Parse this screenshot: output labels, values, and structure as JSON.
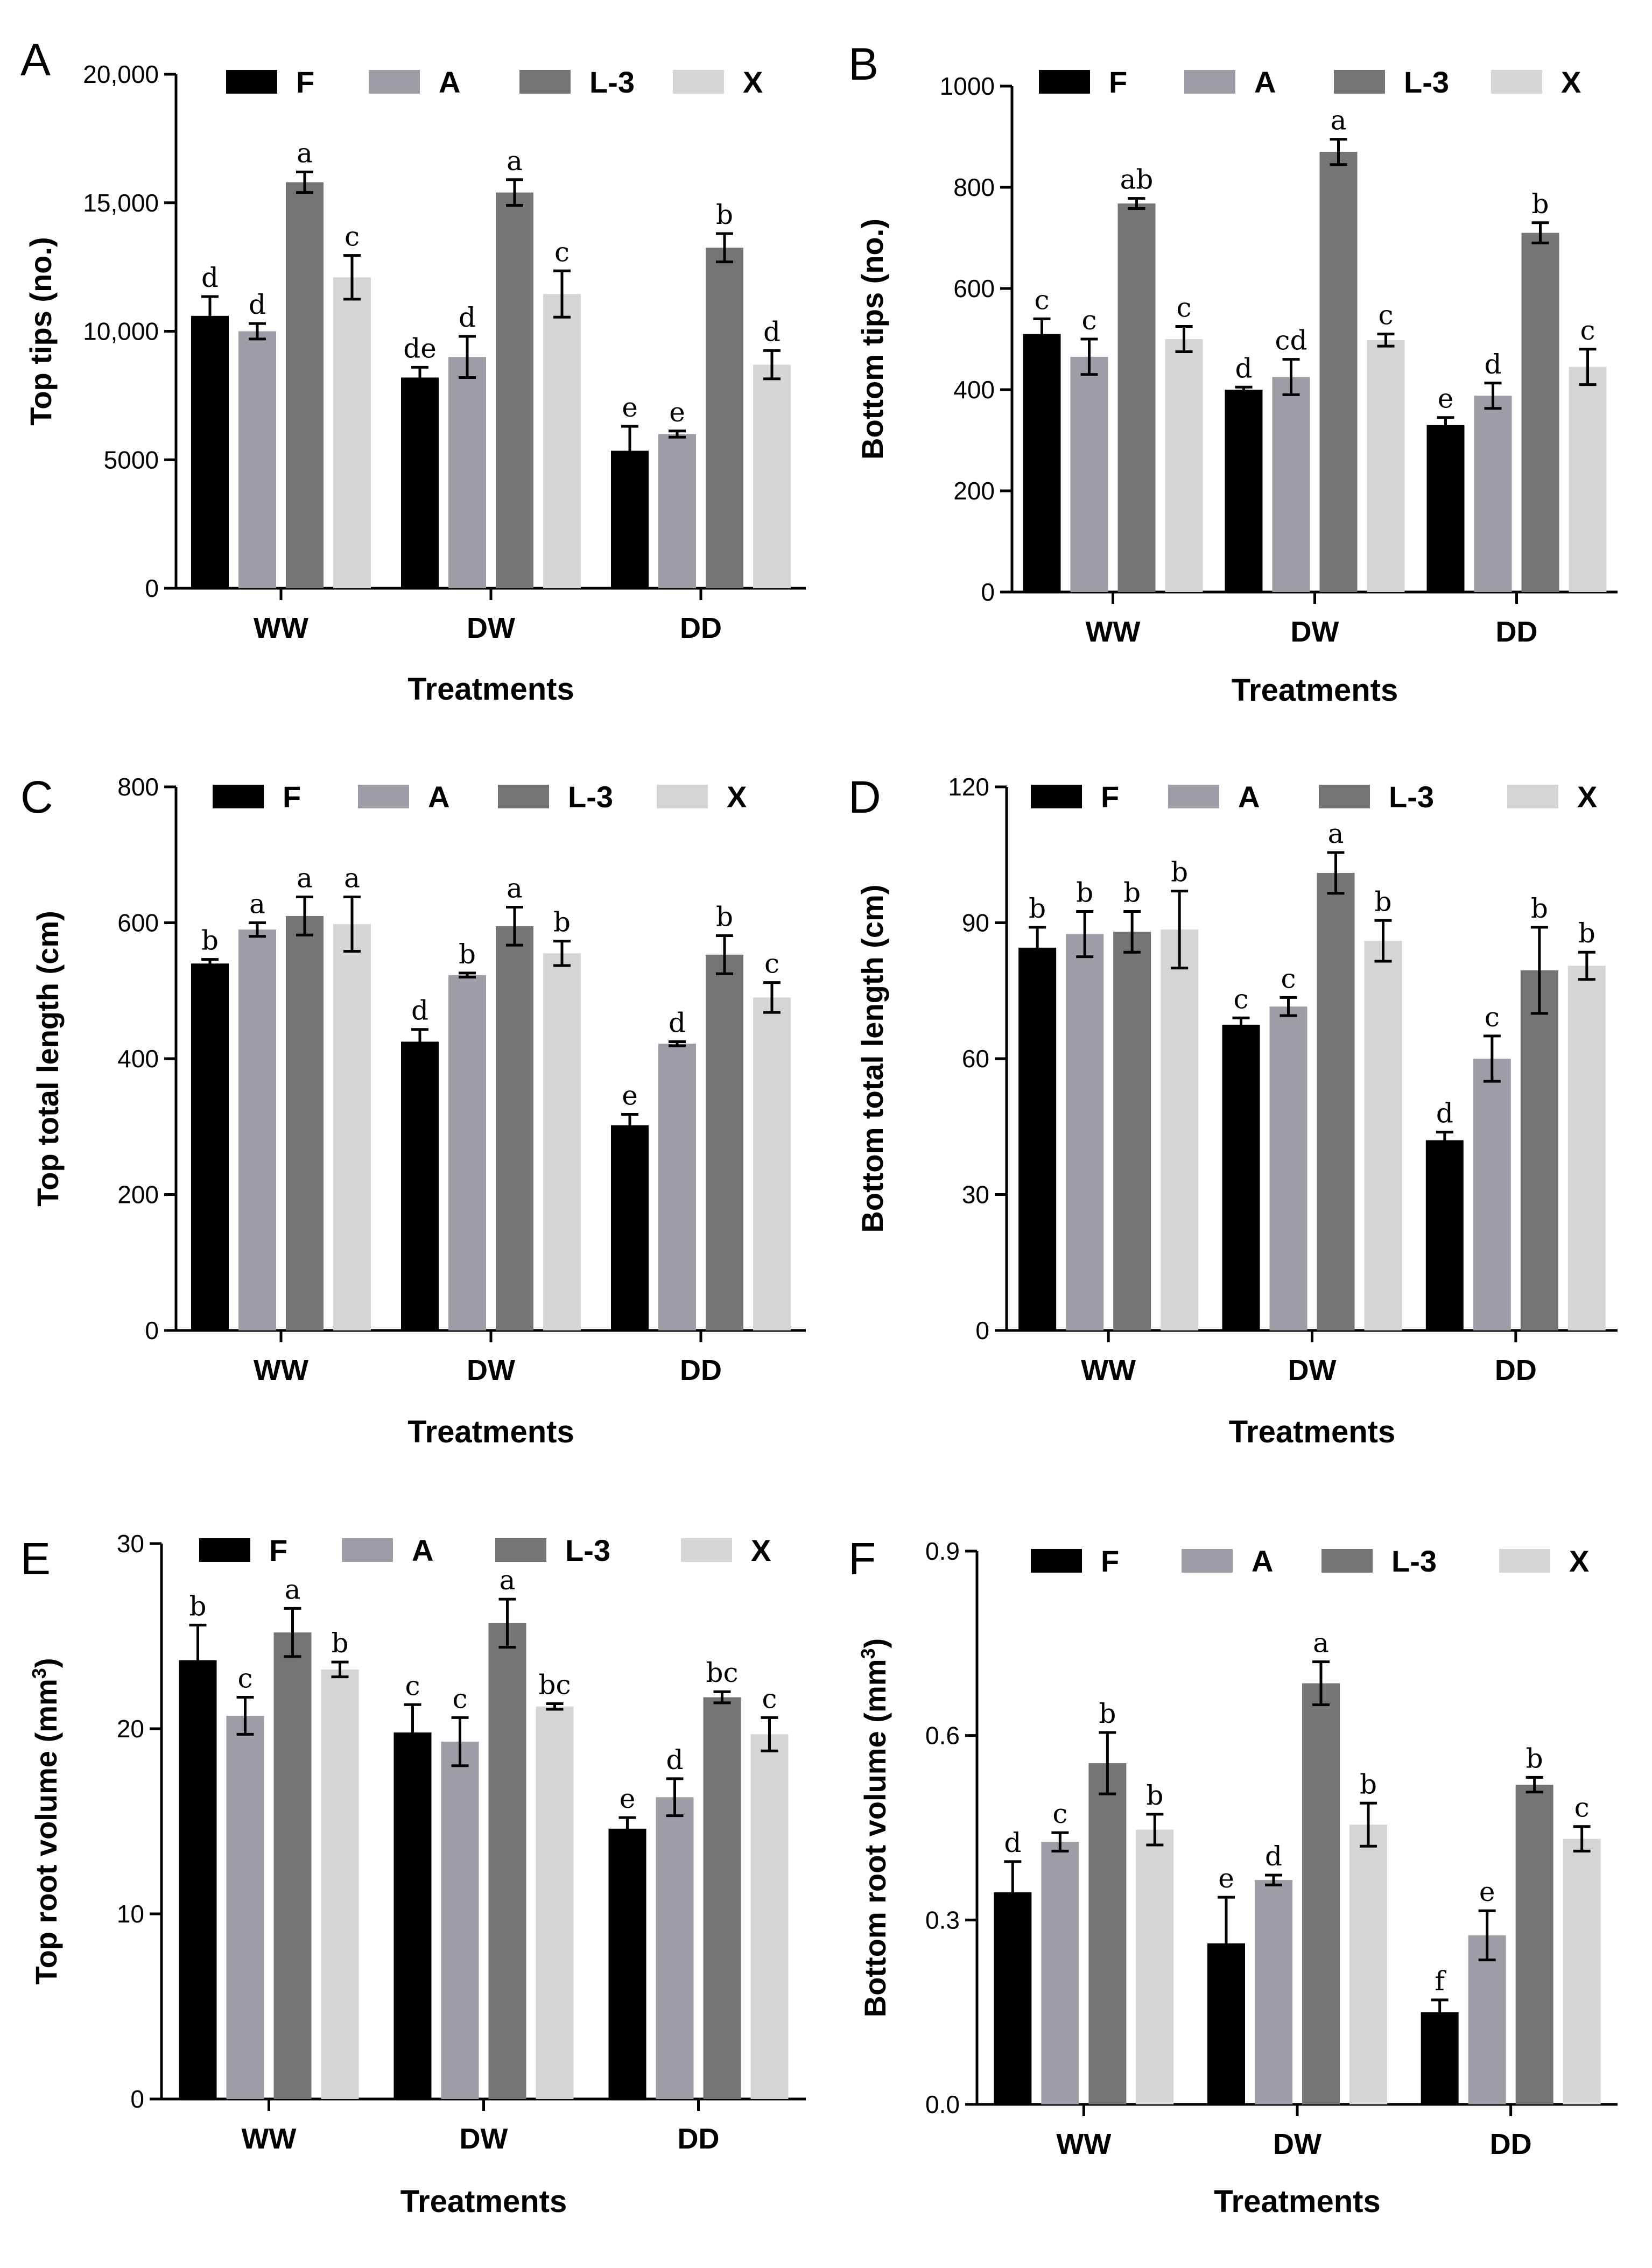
{
  "figure": {
    "groups": [
      "WW",
      "DW",
      "DD"
    ],
    "legend": [
      "F",
      "A",
      "L-3",
      "X"
    ],
    "colors": {
      "F": "#000000",
      "A": "#9d9da5",
      "L-3": "#757575",
      "X": "#d5d5d5",
      "axis": "#000000"
    }
  },
  "chart_data": [
    {
      "panel": "A",
      "type": "bar",
      "title": "",
      "xlabel": "Treatments",
      "ylabel": "Top tips (no.)",
      "ylabel_sup": "",
      "ylabel_end": "",
      "ylim": [
        0,
        20000
      ],
      "ticks": [
        0,
        5000,
        10000,
        15000,
        20000
      ],
      "tick_labels": [
        "0",
        "5000",
        "10,000",
        "15,000",
        "20,000"
      ],
      "categories": [
        "WW",
        "DW",
        "DD"
      ],
      "legend_labels": [
        "F",
        "A",
        "L-3",
        "X"
      ],
      "series": [
        {
          "name": "F",
          "values": [
            10600,
            8200,
            5350
          ],
          "errors": [
            750,
            400,
            950
          ],
          "letters": [
            "d",
            "de",
            "e"
          ]
        },
        {
          "name": "A",
          "values": [
            10000,
            9000,
            6000
          ],
          "errors": [
            300,
            800,
            120
          ],
          "letters": [
            "d",
            "d",
            "e"
          ]
        },
        {
          "name": "L-3",
          "values": [
            15800,
            15400,
            13250
          ],
          "errors": [
            400,
            500,
            550
          ],
          "letters": [
            "a",
            "a",
            "b"
          ]
        },
        {
          "name": "X",
          "values": [
            12100,
            11450,
            8700
          ],
          "errors": [
            850,
            900,
            550
          ],
          "letters": [
            "c",
            "c",
            "d"
          ]
        }
      ]
    },
    {
      "panel": "B",
      "type": "bar",
      "title": "",
      "xlabel": "Treatments",
      "ylabel": "Bottom tips (no.)",
      "ylabel_sup": "",
      "ylabel_end": "",
      "ylim": [
        0,
        1000
      ],
      "ticks": [
        0,
        200,
        400,
        600,
        800,
        1000
      ],
      "tick_labels": [
        "0",
        "200",
        "400",
        "600",
        "800",
        "1000"
      ],
      "categories": [
        "WW",
        "DW",
        "DD"
      ],
      "legend_labels": [
        "F",
        "A",
        "L-3",
        "X"
      ],
      "series": [
        {
          "name": "F",
          "values": [
            510,
            400,
            330
          ],
          "errors": [
            30,
            5,
            15
          ],
          "letters": [
            "c",
            "d",
            "e"
          ]
        },
        {
          "name": "A",
          "values": [
            465,
            425,
            388
          ],
          "errors": [
            35,
            35,
            25
          ],
          "letters": [
            "c",
            "cd",
            "d"
          ]
        },
        {
          "name": "L-3",
          "values": [
            768,
            870,
            710
          ],
          "errors": [
            10,
            25,
            20
          ],
          "letters": [
            "ab",
            "a",
            "b"
          ]
        },
        {
          "name": "X",
          "values": [
            500,
            498,
            445
          ],
          "errors": [
            25,
            12,
            35
          ],
          "letters": [
            "c",
            "c",
            "c"
          ]
        }
      ]
    },
    {
      "panel": "C",
      "type": "bar",
      "title": "",
      "xlabel": "Treatments",
      "ylabel": "Top total length (cm)",
      "ylabel_sup": "",
      "ylabel_end": "",
      "ylim": [
        0,
        800
      ],
      "ticks": [
        0,
        200,
        400,
        600,
        800
      ],
      "tick_labels": [
        "0",
        "200",
        "400",
        "600",
        "800"
      ],
      "categories": [
        "WW",
        "DW",
        "DD"
      ],
      "legend_labels": [
        "F",
        "A",
        "L-3",
        "X"
      ],
      "series": [
        {
          "name": "F",
          "values": [
            540,
            425,
            302
          ],
          "errors": [
            6,
            18,
            16
          ],
          "letters": [
            "b",
            "d",
            "e"
          ]
        },
        {
          "name": "A",
          "values": [
            590,
            523,
            422
          ],
          "errors": [
            10,
            3,
            3
          ],
          "letters": [
            "a",
            "b",
            "d"
          ]
        },
        {
          "name": "L-3",
          "values": [
            610,
            595,
            553
          ],
          "errors": [
            28,
            28,
            28
          ],
          "letters": [
            "a",
            "a",
            "b"
          ]
        },
        {
          "name": "X",
          "values": [
            598,
            555,
            490
          ],
          "errors": [
            40,
            18,
            22
          ],
          "letters": [
            "a",
            "b",
            "c"
          ]
        }
      ]
    },
    {
      "panel": "D",
      "type": "bar",
      "title": "",
      "xlabel": "Treatments",
      "ylabel": "Bottom total length (cm)",
      "ylabel_sup": "",
      "ylabel_end": "",
      "ylim": [
        0,
        120
      ],
      "ticks": [
        0,
        30,
        60,
        90,
        120
      ],
      "tick_labels": [
        "0",
        "30",
        "60",
        "90",
        "120"
      ],
      "categories": [
        "WW",
        "DW",
        "DD"
      ],
      "legend_labels": [
        "F",
        "A",
        "L-3",
        "X"
      ],
      "series": [
        {
          "name": "F",
          "values": [
            84.5,
            67.5,
            42
          ],
          "errors": [
            4.5,
            1.5,
            1.8
          ],
          "letters": [
            "b",
            "c",
            "d"
          ]
        },
        {
          "name": "A",
          "values": [
            87.5,
            71.5,
            60
          ],
          "errors": [
            5,
            2,
            5
          ],
          "letters": [
            "b",
            "c",
            "c"
          ]
        },
        {
          "name": "L-3",
          "values": [
            88,
            101,
            79.5
          ],
          "errors": [
            4.5,
            4.5,
            9.5
          ],
          "letters": [
            "b",
            "a",
            "b"
          ]
        },
        {
          "name": "X",
          "values": [
            88.5,
            86,
            80.5
          ],
          "errors": [
            8.5,
            4.5,
            3
          ],
          "letters": [
            "b",
            "b",
            "b"
          ]
        }
      ]
    },
    {
      "panel": "E",
      "type": "bar",
      "title": "",
      "xlabel": "Treatments",
      "ylabel": "Top root volume (mm",
      "ylabel_sup": "3",
      "ylabel_end": ")",
      "ylim": [
        0,
        30
      ],
      "ticks": [
        0,
        10,
        20,
        30
      ],
      "tick_labels": [
        "0",
        "10",
        "20",
        "30"
      ],
      "categories": [
        "WW",
        "DW",
        "DD"
      ],
      "legend_labels": [
        "F",
        "A",
        "L-3",
        "X"
      ],
      "series": [
        {
          "name": "F",
          "values": [
            23.7,
            19.8,
            14.6
          ],
          "errors": [
            1.9,
            1.5,
            0.6
          ],
          "letters": [
            "b",
            "c",
            "e"
          ]
        },
        {
          "name": "A",
          "values": [
            20.7,
            19.3,
            16.3
          ],
          "errors": [
            1,
            1.3,
            1
          ],
          "letters": [
            "c",
            "c",
            "d"
          ]
        },
        {
          "name": "L-3",
          "values": [
            25.2,
            25.7,
            21.7
          ],
          "errors": [
            1.3,
            1.3,
            0.3
          ],
          "letters": [
            "a",
            "a",
            "bc"
          ]
        },
        {
          "name": "X",
          "values": [
            23.2,
            21.2,
            19.7
          ],
          "errors": [
            0.4,
            0.15,
            0.9
          ],
          "letters": [
            "b",
            "bc",
            "c"
          ]
        }
      ]
    },
    {
      "panel": "F",
      "type": "bar",
      "title": "",
      "xlabel": "Treatments",
      "ylabel": "Bottom root volume (mm",
      "ylabel_sup": "3",
      "ylabel_end": ")",
      "ylim": [
        0,
        0.9
      ],
      "ticks": [
        0,
        0.3,
        0.6,
        0.9
      ],
      "tick_labels": [
        "0.0",
        "0.3",
        "0.6",
        "0.9"
      ],
      "categories": [
        "WW",
        "DW",
        "DD"
      ],
      "legend_labels": [
        "F",
        "A",
        "L-3",
        "X"
      ],
      "series": [
        {
          "name": "F",
          "values": [
            0.345,
            0.262,
            0.15
          ],
          "errors": [
            0.05,
            0.075,
            0.02
          ],
          "letters": [
            "d",
            "e",
            "f"
          ]
        },
        {
          "name": "A",
          "values": [
            0.427,
            0.365,
            0.275
          ],
          "errors": [
            0.015,
            0.008,
            0.04
          ],
          "letters": [
            "c",
            "d",
            "e"
          ]
        },
        {
          "name": "L-3",
          "values": [
            0.555,
            0.685,
            0.52
          ],
          "errors": [
            0.05,
            0.035,
            0.012
          ],
          "letters": [
            "b",
            "a",
            "b"
          ]
        },
        {
          "name": "X",
          "values": [
            0.447,
            0.455,
            0.432
          ],
          "errors": [
            0.025,
            0.035,
            0.02
          ],
          "letters": [
            "b",
            "b",
            "c"
          ]
        }
      ]
    }
  ]
}
